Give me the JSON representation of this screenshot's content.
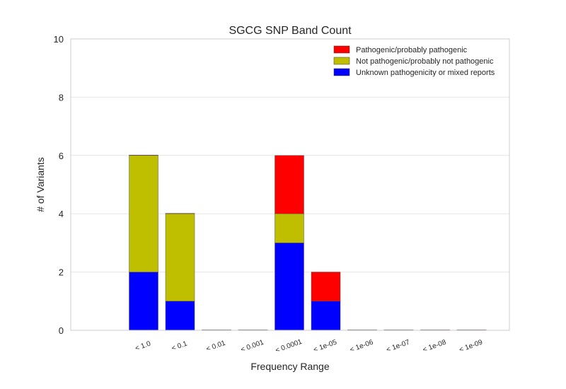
{
  "chart_data": {
    "type": "bar",
    "stacked": true,
    "title": "SGCG SNP Band Count",
    "xlabel": "Frequency Range",
    "ylabel": "# of Variants",
    "ylim": [
      0,
      10
    ],
    "yticks": [
      0,
      2,
      4,
      6,
      8,
      10
    ],
    "grid": true,
    "legend_position": "top-right",
    "categories": [
      "< 1.0",
      "< 0.1",
      "< 0.01",
      "< 0.001",
      "< 0.0001",
      "< 1e-05",
      "< 1e-06",
      "< 1e-07",
      "< 1e-08",
      "< 1e-09"
    ],
    "series": [
      {
        "name": "Unknown pathogenicity or mixed reports",
        "color": "#0000ff",
        "values": [
          2,
          1,
          0,
          0,
          3,
          1,
          0,
          0,
          0,
          0
        ]
      },
      {
        "name": "Not pathogenic/probably not pathogenic",
        "color": "#bfbf00",
        "values": [
          4,
          3,
          0,
          0,
          1,
          0,
          0,
          0,
          0,
          0
        ]
      },
      {
        "name": "Pathogenic/probably pathogenic",
        "color": "#ff0000",
        "values": [
          0,
          0,
          0,
          0,
          2,
          1,
          0,
          0,
          0,
          0
        ]
      }
    ],
    "legend_order": [
      2,
      1,
      0
    ]
  }
}
